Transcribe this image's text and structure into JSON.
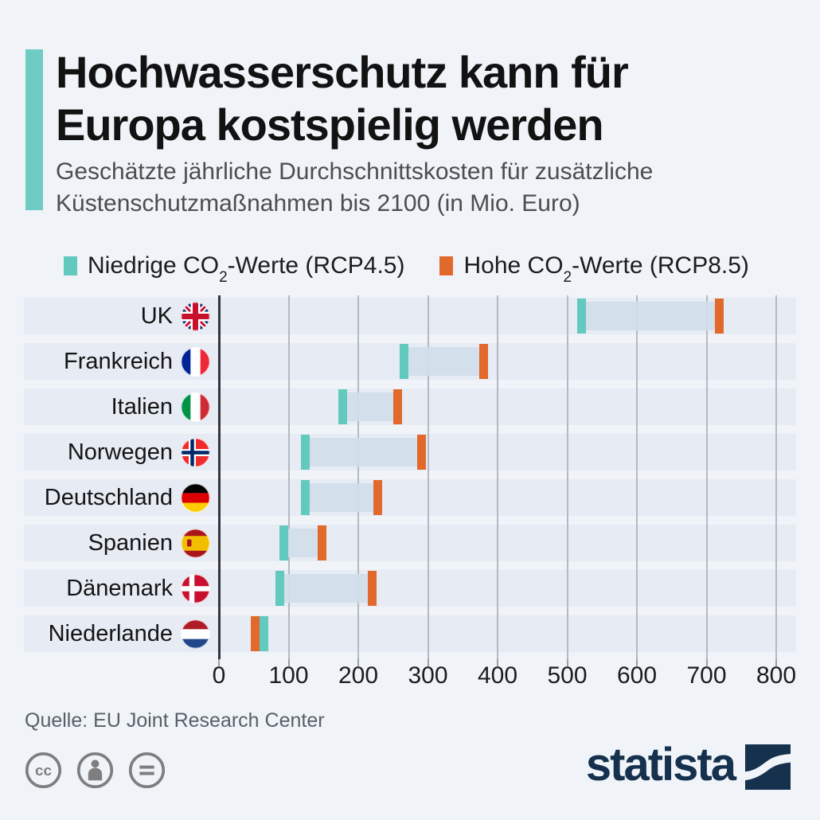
{
  "header": {
    "title_line1": "Hochwasserschutz kann für",
    "title_line2": "Europa kostspielig werden",
    "subtitle_line1": "Geschätzte jährliche Durchschnittskosten für zusätzliche",
    "subtitle_line2": "Küstenschutzmaßnahmen bis 2100 (in Mio. Euro)"
  },
  "legend": [
    {
      "pre": "Niedrige CO",
      "sub": "2",
      "post": "-Werte (RCP4.5)",
      "color": "#62c9bf"
    },
    {
      "pre": "Hohe CO",
      "sub": "2",
      "post": "-Werte (RCP8.5)",
      "color": "#e2692c"
    }
  ],
  "chart_data": {
    "type": "bar",
    "variant": "range-dumbbell",
    "title": "Hochwasserschutz kann für Europa kostspielig werden",
    "subtitle": "Geschätzte jährliche Durchschnittskosten für zusätzliche Küstenschutzmaßnahmen bis 2100 (in Mio. Euro)",
    "categories": [
      "UK",
      "Frankreich",
      "Italien",
      "Norwegen",
      "Deutschland",
      "Spanien",
      "Dänemark",
      "Niederlande"
    ],
    "flags": [
      "uk",
      "france",
      "italy",
      "norway",
      "germany",
      "spain",
      "denmark",
      "netherlands"
    ],
    "series": [
      {
        "name": "Niedrige CO2-Werte (RCP4.5)",
        "color": "#62c9bf",
        "values": [
          520,
          266,
          178,
          124,
          124,
          93,
          87,
          64
        ]
      },
      {
        "name": "Hohe CO2-Werte (RCP8.5)",
        "color": "#e2692c",
        "values": [
          718,
          380,
          257,
          291,
          228,
          148,
          220,
          52
        ]
      }
    ],
    "xlabel": "",
    "ylabel": "",
    "xlim": [
      0,
      800
    ],
    "xticks": [
      0,
      100,
      200,
      300,
      400,
      500,
      600,
      700,
      800
    ],
    "grid": true,
    "legend_position": "top",
    "band_color": "#d1dde9",
    "row_band_color": "#e6ebf4"
  },
  "footer": {
    "source": "Quelle: EU Joint Research Center",
    "license_icons": [
      "cc",
      "by",
      "nd"
    ],
    "brand": "statista",
    "brand_color": "#15314d"
  }
}
